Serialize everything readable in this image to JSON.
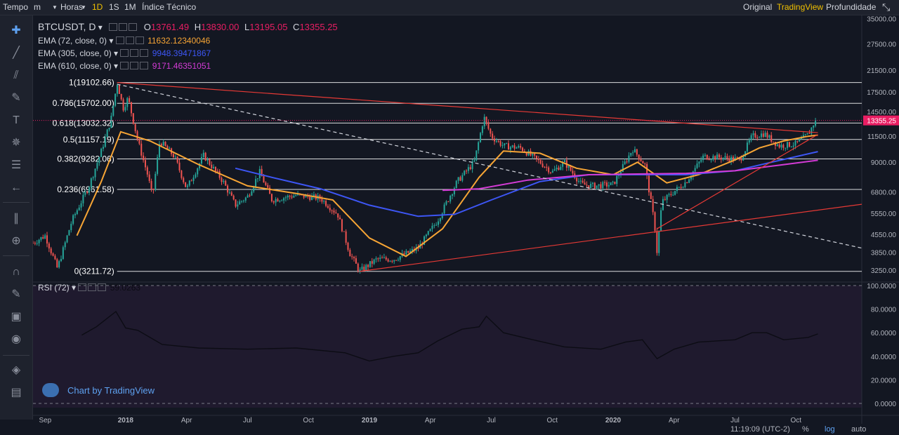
{
  "topbar": {
    "left": [
      {
        "label": "Tempo",
        "name": "time-label"
      },
      {
        "label": "m",
        "name": "interval-dropdown"
      },
      {
        "label": "Horas",
        "name": "hours-dropdown"
      },
      {
        "label": "1D",
        "name": "interval-1d"
      },
      {
        "label": "1S",
        "name": "interval-1s"
      },
      {
        "label": "1M",
        "name": "interval-1m"
      },
      {
        "label": "Índice Técnico",
        "name": "technical-index"
      }
    ],
    "right": [
      {
        "label": "Original",
        "name": "view-original"
      },
      {
        "label": "TradingView",
        "name": "view-tradingview"
      },
      {
        "label": "Profundidade",
        "name": "view-depth"
      }
    ],
    "selected_interval": "1D",
    "selected_view": "TradingView",
    "fullscreen_icon": "fullscreen-icon"
  },
  "toolbar_icons": [
    "crosshair-icon",
    "trend-line-icon",
    "pitchfork-icon",
    "brush-icon",
    "text-icon",
    "pattern-icon",
    "prediction-icon",
    "back-arrow-icon",
    "ruler-icon",
    "zoom-icon",
    "magnet-icon",
    "lock-drawing-icon",
    "lock-icon",
    "eye-icon",
    "layers-icon",
    "trash-icon"
  ],
  "legend": {
    "symbol": "BTCUSDT, D",
    "ohlc": [
      {
        "k": "O",
        "v": "13761.49"
      },
      {
        "k": "H",
        "v": "13830.00"
      },
      {
        "k": "L",
        "v": "13195.05"
      },
      {
        "k": "C",
        "v": "13355.25"
      }
    ],
    "indicators": [
      {
        "label": "EMA (72, close, 0)",
        "value": "11632.12340046",
        "color": "#f7a535"
      },
      {
        "label": "EMA (305, close, 0)",
        "value": "9948.39471867",
        "color": "#3d56f5"
      },
      {
        "label": "EMA (610, close, 0)",
        "value": "9171.46351051",
        "color": "#d43bd6"
      }
    ],
    "rsi": {
      "label": "RSI (72)",
      "value": "59.0263"
    }
  },
  "attribution": "Chart by TradingView",
  "bottombar": {
    "time": "11:19:09 (UTC-2)",
    "percent": "%",
    "log": "log",
    "auto": "auto"
  },
  "colors": {
    "up": "#26a69a",
    "down": "#ef5350",
    "last_price": "#e91e63",
    "ema72": "#f7a535",
    "ema305": "#3d56f5",
    "ema610": "#d43bd6",
    "trendline": "#e53935",
    "fib": "#ffffff"
  },
  "chart_data": [
    {
      "type": "line",
      "subtype": "candlestick",
      "symbol": "BTCUSDT",
      "scale": "log",
      "last_price": 13355.25,
      "ylim": [
        3000,
        36000
      ],
      "y_ticks": [
        35000,
        27500,
        21500,
        17500,
        14500,
        11500,
        9000,
        6800,
        5550,
        4550,
        3850,
        3250
      ],
      "y_tick_labels": [
        "35000.00",
        "27500.00",
        "21500.00",
        "17500.00",
        "14500.00",
        "11500.00",
        "9000.00",
        "6800.00",
        "5550.00",
        "4550.00",
        "3850.00",
        "3250.00"
      ],
      "x_labels": [
        {
          "label": "Sep",
          "t": 2017.67
        },
        {
          "label": "2018",
          "t": 2018.0
        },
        {
          "label": "Apr",
          "t": 2018.25
        },
        {
          "label": "Jul",
          "t": 2018.5
        },
        {
          "label": "Oct",
          "t": 2018.75
        },
        {
          "label": "2019",
          "t": 2019.0
        },
        {
          "label": "Apr",
          "t": 2019.25
        },
        {
          "label": "Jul",
          "t": 2019.5
        },
        {
          "label": "Oct",
          "t": 2019.75
        },
        {
          "label": "2020",
          "t": 2020.0
        },
        {
          "label": "Apr",
          "t": 2020.25
        },
        {
          "label": "Jul",
          "t": 2020.5
        },
        {
          "label": "Oct",
          "t": 2020.75
        }
      ],
      "xlim": [
        2017.62,
        2021.02
      ],
      "price_keypoints": [
        [
          2017.62,
          4200
        ],
        [
          2017.67,
          4500
        ],
        [
          2017.72,
          3300
        ],
        [
          2017.78,
          5200
        ],
        [
          2017.85,
          7200
        ],
        [
          2017.9,
          10000
        ],
        [
          2017.94,
          13500
        ],
        [
          2017.965,
          19100
        ],
        [
          2017.99,
          15000
        ],
        [
          2018.01,
          16500
        ],
        [
          2018.05,
          11000
        ],
        [
          2018.09,
          8000
        ],
        [
          2018.11,
          6500
        ],
        [
          2018.14,
          11000
        ],
        [
          2018.2,
          9500
        ],
        [
          2018.25,
          7000
        ],
        [
          2018.32,
          9600
        ],
        [
          2018.4,
          7500
        ],
        [
          2018.45,
          6000
        ],
        [
          2018.5,
          6500
        ],
        [
          2018.55,
          8200
        ],
        [
          2018.6,
          6300
        ],
        [
          2018.7,
          6600
        ],
        [
          2018.8,
          6400
        ],
        [
          2018.87,
          5500
        ],
        [
          2018.92,
          3800
        ],
        [
          2018.96,
          3211
        ],
        [
          2019.03,
          3600
        ],
        [
          2019.1,
          3600
        ],
        [
          2019.2,
          4000
        ],
        [
          2019.28,
          5200
        ],
        [
          2019.36,
          7500
        ],
        [
          2019.43,
          9000
        ],
        [
          2019.47,
          13800
        ],
        [
          2019.5,
          11500
        ],
        [
          2019.55,
          10500
        ],
        [
          2019.62,
          10300
        ],
        [
          2019.7,
          9000
        ],
        [
          2019.75,
          8200
        ],
        [
          2019.8,
          9000
        ],
        [
          2019.87,
          7300
        ],
        [
          2019.92,
          7200
        ],
        [
          2020.0,
          7300
        ],
        [
          2020.08,
          10200
        ],
        [
          2020.13,
          8800
        ],
        [
          2020.17,
          5000
        ],
        [
          2020.18,
          3850
        ],
        [
          2020.2,
          6200
        ],
        [
          2020.3,
          7500
        ],
        [
          2020.37,
          9500
        ],
        [
          2020.45,
          9400
        ],
        [
          2020.52,
          9200
        ],
        [
          2020.57,
          11500
        ],
        [
          2020.62,
          11800
        ],
        [
          2020.68,
          10500
        ],
        [
          2020.75,
          10700
        ],
        [
          2020.8,
          11700
        ],
        [
          2020.83,
          13355
        ]
      ],
      "ema72_keypoints": [
        [
          2017.8,
          4500
        ],
        [
          2017.9,
          7500
        ],
        [
          2017.98,
          12000
        ],
        [
          2018.1,
          11000
        ],
        [
          2018.3,
          8800
        ],
        [
          2018.5,
          7200
        ],
        [
          2018.7,
          6700
        ],
        [
          2018.85,
          6300
        ],
        [
          2019.0,
          4400
        ],
        [
          2019.15,
          3700
        ],
        [
          2019.3,
          4800
        ],
        [
          2019.45,
          7800
        ],
        [
          2019.55,
          10000
        ],
        [
          2019.7,
          9800
        ],
        [
          2019.85,
          8500
        ],
        [
          2020.0,
          8000
        ],
        [
          2020.1,
          9000
        ],
        [
          2020.22,
          7400
        ],
        [
          2020.35,
          8000
        ],
        [
          2020.5,
          9200
        ],
        [
          2020.6,
          10300
        ],
        [
          2020.7,
          11000
        ],
        [
          2020.8,
          11500
        ],
        [
          2020.84,
          11632
        ]
      ],
      "ema305_keypoints": [
        [
          2018.45,
          8500
        ],
        [
          2018.6,
          7800
        ],
        [
          2018.8,
          7000
        ],
        [
          2019.0,
          6000
        ],
        [
          2019.2,
          5400
        ],
        [
          2019.35,
          5500
        ],
        [
          2019.5,
          6300
        ],
        [
          2019.7,
          7500
        ],
        [
          2019.9,
          8000
        ],
        [
          2020.1,
          8000
        ],
        [
          2020.3,
          8000
        ],
        [
          2020.5,
          8300
        ],
        [
          2020.65,
          9000
        ],
        [
          2020.84,
          9948
        ]
      ],
      "ema610_keypoints": [
        [
          2019.3,
          6900
        ],
        [
          2019.45,
          7000
        ],
        [
          2019.65,
          7600
        ],
        [
          2019.9,
          8000
        ],
        [
          2020.1,
          8050
        ],
        [
          2020.3,
          8100
        ],
        [
          2020.5,
          8300
        ],
        [
          2020.7,
          8800
        ],
        [
          2020.84,
          9171
        ]
      ],
      "fib_levels": [
        {
          "label": "1(19102.66)",
          "value": 19102.66
        },
        {
          "label": "0.786(15702.00)",
          "value": 15702.0
        },
        {
          "label": "0.618(13032.32)",
          "value": 13032.32
        },
        {
          "label": "0.5(11157.19)",
          "value": 11157.19
        },
        {
          "label": "0.382(9282.06)",
          "value": 9282.06
        },
        {
          "label": "0.236(6961.58)",
          "value": 6961.58
        },
        {
          "label": "0(3211.72)",
          "value": 3211.72
        }
      ],
      "trendlines": [
        {
          "style": "solid",
          "from": [
            2017.965,
            19100
          ],
          "to": [
            2020.84,
            11900
          ]
        },
        {
          "style": "dashed",
          "from": [
            2017.965,
            18800
          ],
          "to": [
            2021.02,
            4000
          ]
        },
        {
          "style": "solid",
          "from": [
            2018.96,
            3211
          ],
          "to": [
            2021.02,
            6050
          ]
        },
        {
          "style": "solid",
          "from": [
            2020.18,
            4800
          ],
          "to": [
            2020.84,
            11700
          ]
        }
      ]
    },
    {
      "type": "line",
      "name": "RSI (72)",
      "ylim": [
        0,
        100
      ],
      "y_ticks": [
        100,
        80,
        60,
        40,
        20,
        0
      ],
      "y_tick_labels": [
        "100.0000",
        "80.0000",
        "60.0000",
        "40.0000",
        "20.0000",
        "0.0000"
      ],
      "bands": [
        100,
        0
      ],
      "last_value": 59.0263,
      "rsi_keypoints": [
        [
          2017.82,
          58
        ],
        [
          2017.88,
          65
        ],
        [
          2017.96,
          78
        ],
        [
          2018.0,
          64
        ],
        [
          2018.05,
          62
        ],
        [
          2018.15,
          50
        ],
        [
          2018.3,
          47
        ],
        [
          2018.5,
          46
        ],
        [
          2018.7,
          47
        ],
        [
          2018.9,
          43
        ],
        [
          2019.0,
          36
        ],
        [
          2019.1,
          40
        ],
        [
          2019.2,
          43
        ],
        [
          2019.28,
          53
        ],
        [
          2019.38,
          63
        ],
        [
          2019.45,
          65
        ],
        [
          2019.48,
          74
        ],
        [
          2019.55,
          60
        ],
        [
          2019.65,
          55
        ],
        [
          2019.8,
          48
        ],
        [
          2019.95,
          46
        ],
        [
          2020.05,
          52
        ],
        [
          2020.12,
          54
        ],
        [
          2020.18,
          38
        ],
        [
          2020.25,
          46
        ],
        [
          2020.35,
          52
        ],
        [
          2020.5,
          54
        ],
        [
          2020.57,
          60
        ],
        [
          2020.63,
          60
        ],
        [
          2020.7,
          54
        ],
        [
          2020.8,
          56
        ],
        [
          2020.84,
          59
        ]
      ]
    }
  ]
}
